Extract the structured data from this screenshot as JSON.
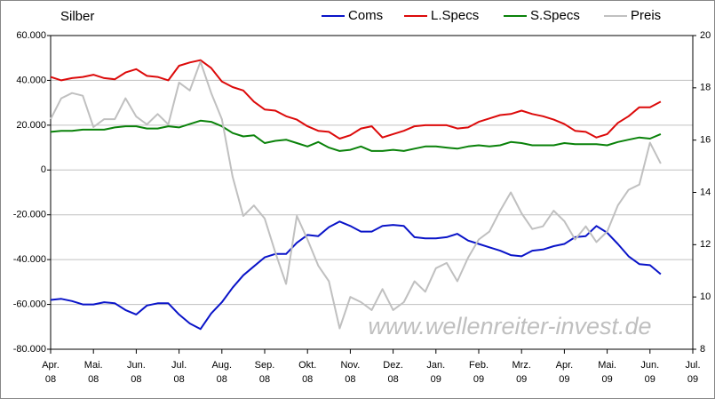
{
  "chart_data": {
    "type": "line",
    "title": "Silber",
    "watermark": "www.wellenreiter-invest.de",
    "legend": "top",
    "grid": true,
    "xlim": [
      0,
      15
    ],
    "xticks": [
      {
        "value": 0,
        "label": [
          "Apr.",
          "08"
        ]
      },
      {
        "value": 1,
        "label": [
          "Mai.",
          "08"
        ]
      },
      {
        "value": 2,
        "label": [
          "Jun.",
          "08"
        ]
      },
      {
        "value": 3,
        "label": [
          "Jul.",
          "08"
        ]
      },
      {
        "value": 4,
        "label": [
          "Aug.",
          "08"
        ]
      },
      {
        "value": 5,
        "label": [
          "Sep.",
          "08"
        ]
      },
      {
        "value": 6,
        "label": [
          "Okt.",
          "08"
        ]
      },
      {
        "value": 7,
        "label": [
          "Nov.",
          "08"
        ]
      },
      {
        "value": 8,
        "label": [
          "Dez.",
          "08"
        ]
      },
      {
        "value": 9,
        "label": [
          "Jan.",
          "09"
        ]
      },
      {
        "value": 10,
        "label": [
          "Feb.",
          "09"
        ]
      },
      {
        "value": 11,
        "label": [
          "Mrz.",
          "09"
        ]
      },
      {
        "value": 12,
        "label": [
          "Apr.",
          "09"
        ]
      },
      {
        "value": 13,
        "label": [
          "Mai.",
          "09"
        ]
      },
      {
        "value": 14,
        "label": [
          "Jun.",
          "09"
        ]
      },
      {
        "value": 15,
        "label": [
          "Jul.",
          "09"
        ]
      }
    ],
    "ylim": [
      -80000,
      60000
    ],
    "yticks": [
      {
        "value": -80000,
        "label": "-80.000"
      },
      {
        "value": -60000,
        "label": "-60.000"
      },
      {
        "value": -40000,
        "label": "-40.000"
      },
      {
        "value": -20000,
        "label": "-20.000"
      },
      0,
      {
        "value": 20000,
        "label": "20.000"
      },
      {
        "value": 40000,
        "label": "40.000"
      },
      {
        "value": 60000,
        "label": "60.000"
      }
    ],
    "y2lim": [
      8,
      20
    ],
    "y2ticks": [
      8,
      10,
      12,
      14,
      16,
      18,
      20
    ],
    "x": [
      0,
      0.25,
      0.5,
      0.75,
      1,
      1.25,
      1.5,
      1.75,
      2,
      2.25,
      2.5,
      2.75,
      3,
      3.25,
      3.5,
      3.75,
      4,
      4.25,
      4.5,
      4.75,
      5,
      5.25,
      5.5,
      5.75,
      6,
      6.25,
      6.5,
      6.75,
      7,
      7.25,
      7.5,
      7.75,
      8,
      8.25,
      8.5,
      8.75,
      9,
      9.25,
      9.5,
      9.75,
      10,
      10.25,
      10.5,
      10.75,
      11,
      11.25,
      11.5,
      11.75,
      12,
      12.25,
      12.5,
      12.75,
      13,
      13.25,
      13.5,
      13.75,
      14,
      14.25
    ],
    "series": [
      {
        "name": "Coms",
        "color": "#0a14c8",
        "values": [
          -58000,
          -57500,
          -58500,
          -60000,
          -60000,
          -59000,
          -59500,
          -62500,
          -64500,
          -60500,
          -59500,
          -59500,
          -64500,
          -68500,
          -71000,
          -64000,
          -59000,
          -52500,
          -47000,
          -43000,
          -39000,
          -37500,
          -37500,
          -32500,
          -29000,
          -29500,
          -25500,
          -23000,
          -25000,
          -27500,
          -27500,
          -25000,
          -24500,
          -25000,
          -30000,
          -30500,
          -30500,
          -30000,
          -28500,
          -31500,
          -33000,
          -34500,
          -36000,
          -38000,
          -38500,
          -36000,
          -35500,
          -34000,
          -33000,
          -30000,
          -29500,
          -25000,
          -28000,
          -33000,
          -38500,
          -42000,
          -42500,
          -46500
        ]
      },
      {
        "name": "L.Specs",
        "color": "#dc0a0a",
        "values": [
          41500,
          40000,
          41000,
          41500,
          42500,
          41000,
          40500,
          43500,
          45000,
          42000,
          41500,
          40000,
          46500,
          48000,
          49000,
          45500,
          39500,
          37000,
          35500,
          30500,
          27000,
          26500,
          24000,
          22500,
          19500,
          17500,
          17000,
          14000,
          15500,
          18500,
          19500,
          14500,
          16000,
          17500,
          19500,
          20000,
          20000,
          20000,
          18500,
          19000,
          21500,
          23000,
          24500,
          25000,
          26500,
          25000,
          24000,
          22500,
          20500,
          17500,
          17000,
          14500,
          16000,
          21000,
          24000,
          28000,
          28000,
          30500
        ]
      },
      {
        "name": "S.Specs",
        "color": "#0a820a",
        "values": [
          17000,
          17500,
          17500,
          18000,
          18000,
          18000,
          19000,
          19500,
          19500,
          18500,
          18500,
          19500,
          19000,
          20500,
          22000,
          21500,
          19500,
          16500,
          15000,
          15500,
          12000,
          13000,
          13500,
          12000,
          10500,
          12500,
          10000,
          8500,
          9000,
          10500,
          8500,
          8500,
          9000,
          8500,
          9500,
          10500,
          10500,
          10000,
          9500,
          10500,
          11000,
          10500,
          11000,
          12500,
          12000,
          11000,
          11000,
          11000,
          12000,
          11500,
          11500,
          11500,
          11000,
          12500,
          13500,
          14500,
          14000,
          16000
        ]
      },
      {
        "name": "Preis",
        "color": "#c0c0c0",
        "axis": "y2",
        "values": [
          16.8,
          17.6,
          17.8,
          17.7,
          16.5,
          16.8,
          16.8,
          17.6,
          16.9,
          16.6,
          17.0,
          16.6,
          18.2,
          17.9,
          19.0,
          17.8,
          16.8,
          14.6,
          13.1,
          13.5,
          13.0,
          11.7,
          10.5,
          13.1,
          12.2,
          11.2,
          10.6,
          8.8,
          10.0,
          9.8,
          9.5,
          10.3,
          9.5,
          9.8,
          10.6,
          10.2,
          11.1,
          11.3,
          10.6,
          11.5,
          12.2,
          12.5,
          13.3,
          14.0,
          13.2,
          12.6,
          12.7,
          13.3,
          12.9,
          12.2,
          12.7,
          12.1,
          12.5,
          13.5,
          14.1,
          14.3,
          15.9,
          15.1
        ]
      }
    ]
  }
}
